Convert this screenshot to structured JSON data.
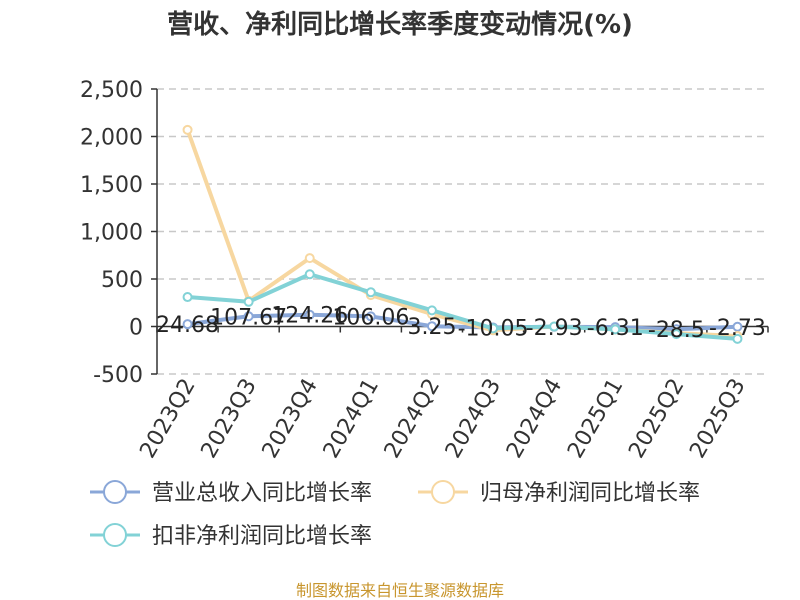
{
  "chart_data": {
    "type": "line",
    "title": "营收、净利同比增长率季度变动情况(%)",
    "source": "制图数据来自恒生聚源数据库",
    "categories": [
      "2023Q2",
      "2023Q3",
      "2023Q4",
      "2024Q1",
      "2024Q2",
      "2024Q3",
      "2024Q4",
      "2025Q1",
      "2025Q2",
      "2025Q3"
    ],
    "ylim": [
      -500,
      2500
    ],
    "yticks": [
      -500,
      0,
      500,
      1000,
      1500,
      2000,
      2500
    ],
    "ytick_labels": [
      "-500",
      "0",
      "500",
      "1,000",
      "1,500",
      "2,000",
      "2,500"
    ],
    "grid": true,
    "legend_position": "bottom",
    "series": [
      {
        "name": "营业总收入同比增长率",
        "color": "#8aa7d8",
        "values": [
          24.68,
          107.67,
          124.26,
          106.06,
          3.25,
          -10.05,
          -2.93,
          -6.31,
          -28.5,
          -2.73
        ],
        "labels": [
          "24.68",
          "107.67",
          "124.26",
          "106.06",
          "3.25",
          "-10.05",
          "-2.93",
          "-6.31",
          "-28.5",
          "-2.73"
        ]
      },
      {
        "name": "归母净利润同比增长率",
        "color": "#f7d7a0",
        "values": [
          2070,
          270,
          720,
          330,
          130,
          -40,
          0,
          -30,
          -70,
          -100
        ]
      },
      {
        "name": "扣非净利润同比增长率",
        "color": "#82d2d6",
        "values": [
          310,
          260,
          550,
          360,
          170,
          -20,
          0,
          -30,
          -80,
          -130
        ]
      }
    ]
  }
}
